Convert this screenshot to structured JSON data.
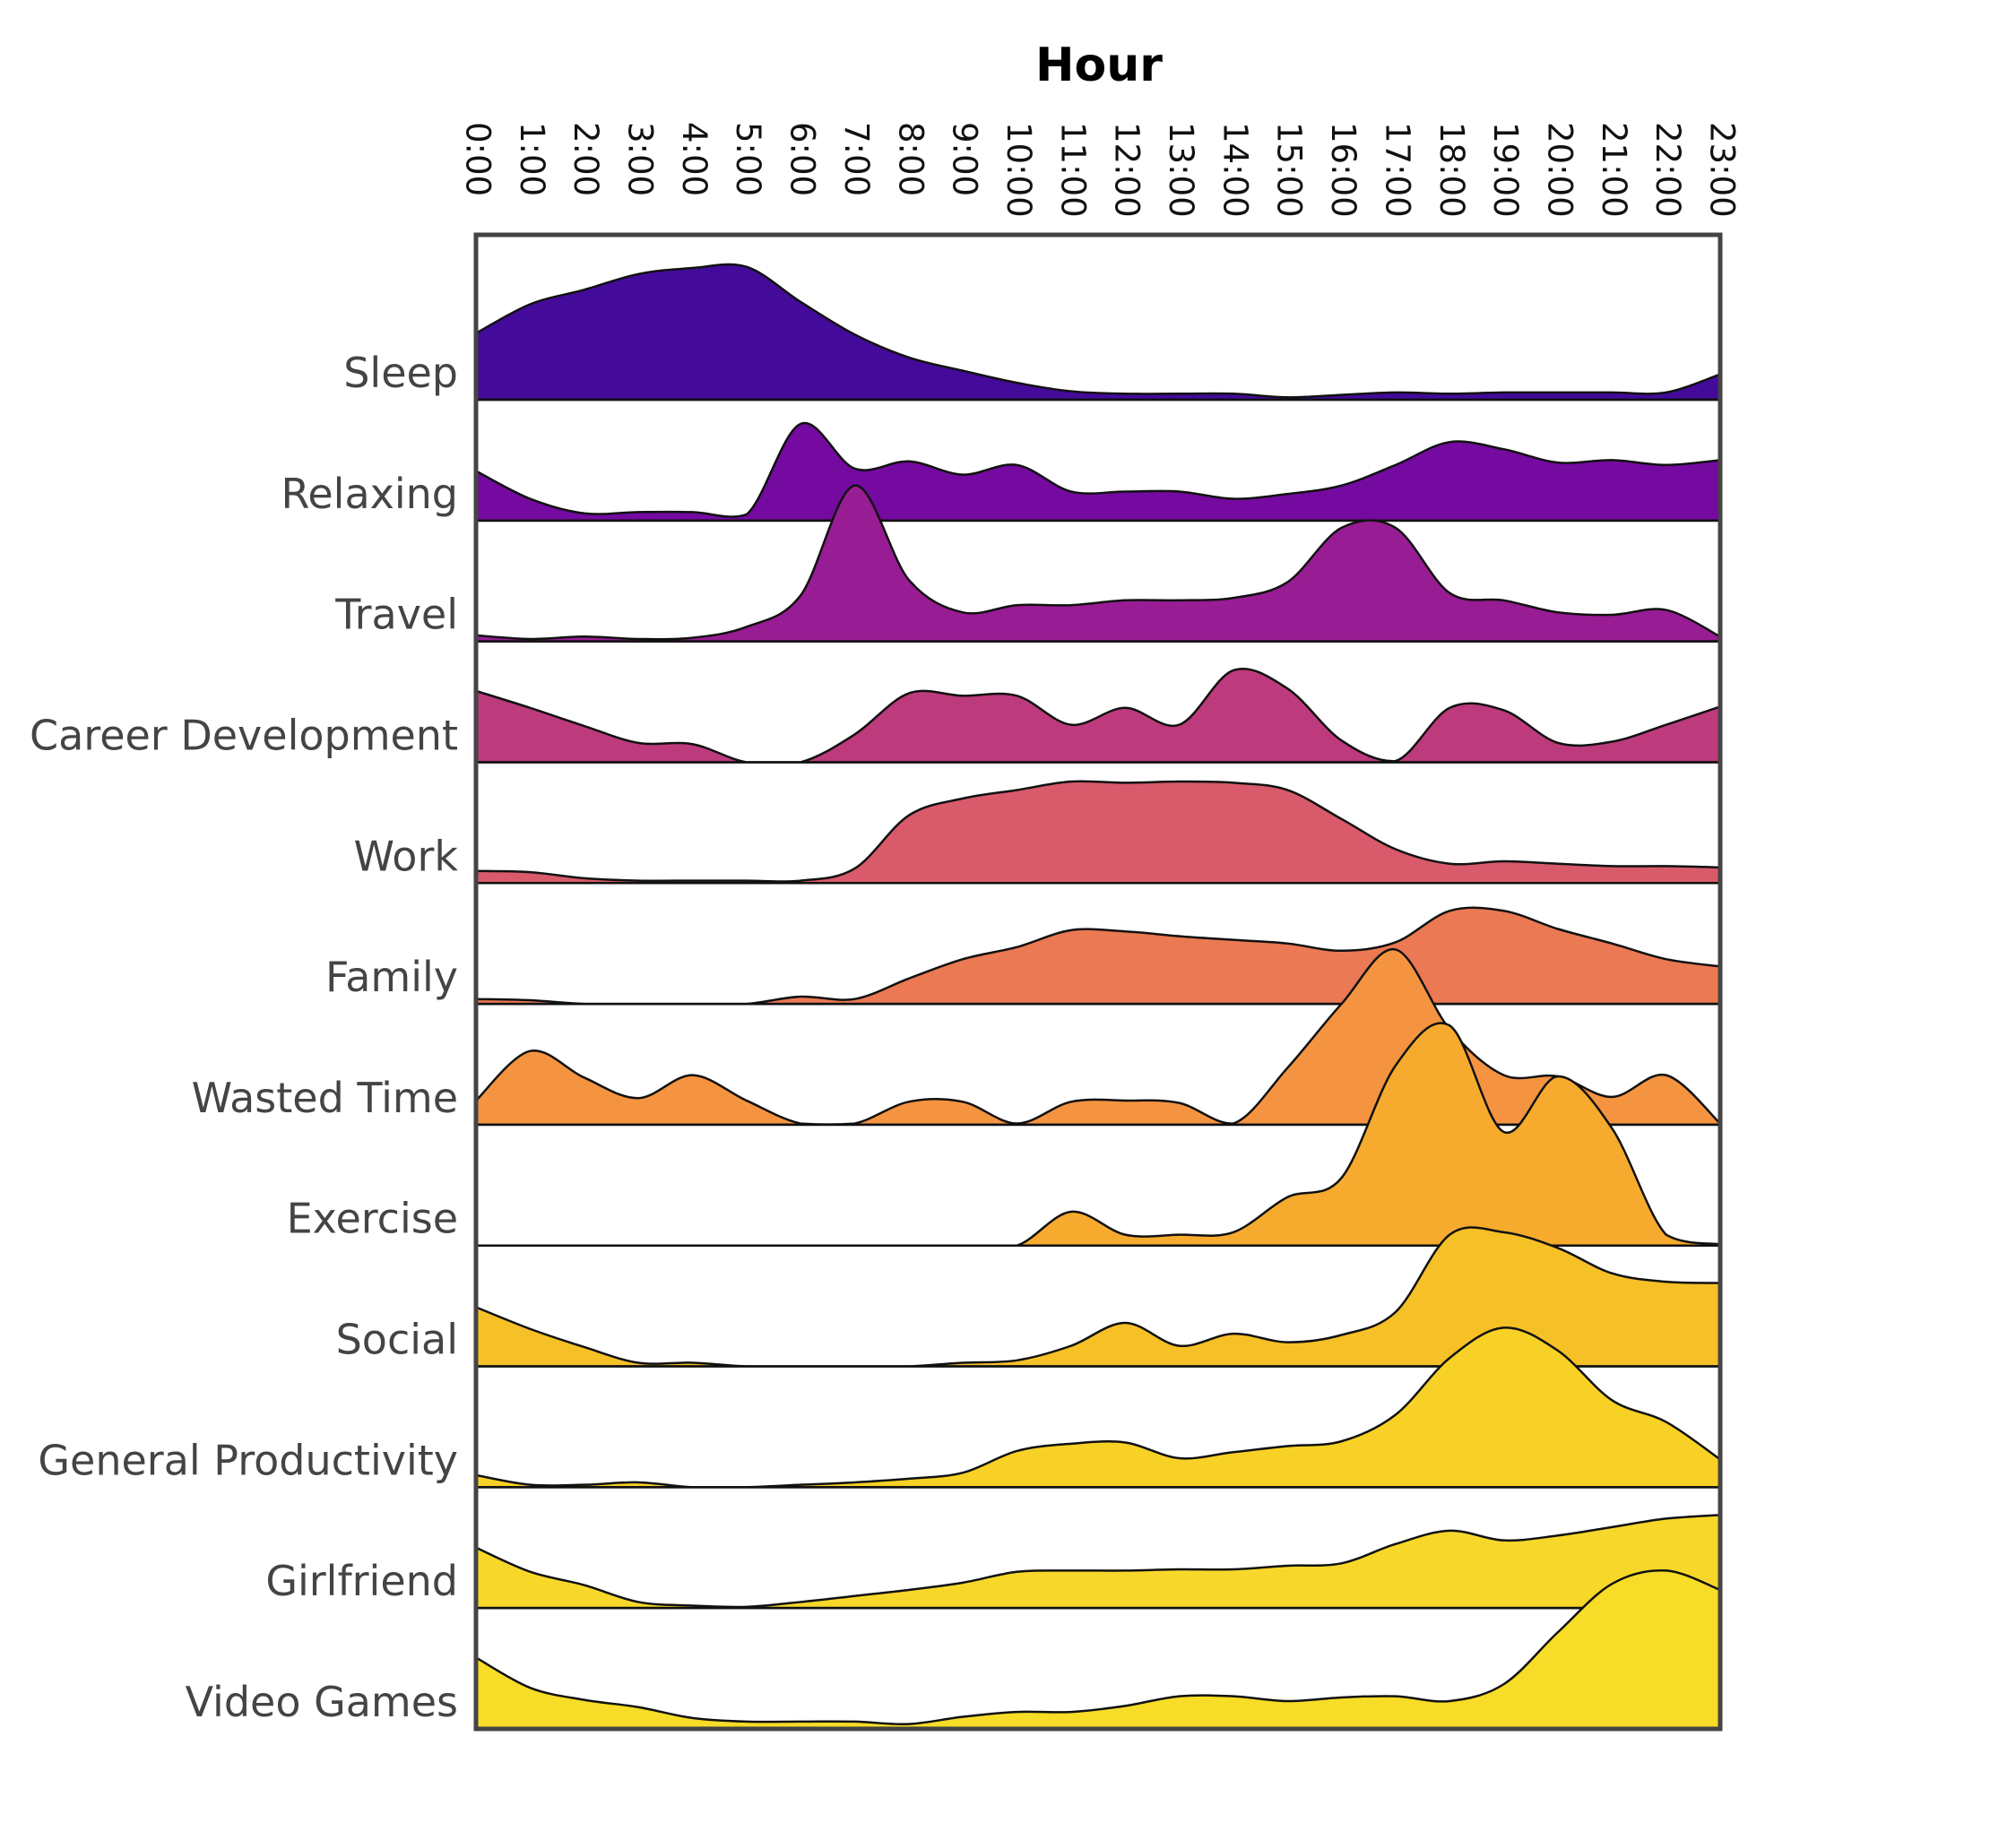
{
  "chart_data": {
    "type": "ridgeline",
    "title": "Hour",
    "categories": [
      "0:00",
      "1:00",
      "2:00",
      "3:00",
      "4:00",
      "5:00",
      "6:00",
      "7:00",
      "8:00",
      "9:00",
      "10:00",
      "11:00",
      "12:00",
      "13:00",
      "14:00",
      "15:00",
      "16:00",
      "17:00",
      "18:00",
      "19:00",
      "20:00",
      "21:00",
      "22:00",
      "23:00"
    ],
    "series": [
      {
        "name": "Sleep",
        "color": "#440a9a",
        "values": [
          0.55,
          0.79,
          0.91,
          1.04,
          1.09,
          1.1,
          0.81,
          0.54,
          0.35,
          0.24,
          0.14,
          0.07,
          0.05,
          0.05,
          0.05,
          0.02,
          0.04,
          0.06,
          0.05,
          0.06,
          0.06,
          0.06,
          0.06,
          0.21
        ]
      },
      {
        "name": "Relaxing",
        "color": "#740aa0",
        "values": [
          0.41,
          0.18,
          0.06,
          0.07,
          0.07,
          0.05,
          0.8,
          0.43,
          0.49,
          0.38,
          0.46,
          0.24,
          0.24,
          0.24,
          0.18,
          0.22,
          0.29,
          0.46,
          0.65,
          0.59,
          0.48,
          0.5,
          0.46,
          0.5
        ]
      },
      {
        "name": "Travel",
        "color": "#981c94",
        "values": [
          0.05,
          0.02,
          0.04,
          0.02,
          0.03,
          0.12,
          0.38,
          1.29,
          0.51,
          0.24,
          0.3,
          0.3,
          0.34,
          0.34,
          0.36,
          0.49,
          0.94,
          0.94,
          0.4,
          0.34,
          0.24,
          0.22,
          0.26,
          0.04
        ]
      },
      {
        "name": "Career Development",
        "color": "#bd3a7d",
        "values": [
          0.59,
          0.45,
          0.3,
          0.16,
          0.15,
          0,
          0,
          0.23,
          0.57,
          0.55,
          0.55,
          0.31,
          0.45,
          0.31,
          0.76,
          0.61,
          0.18,
          0.01,
          0.45,
          0.43,
          0.16,
          0.17,
          0.31,
          0.46
        ]
      },
      {
        "name": "Work",
        "color": "#d85a6b",
        "values": [
          0.1,
          0.09,
          0.04,
          0.02,
          0.02,
          0.02,
          0.02,
          0.12,
          0.56,
          0.7,
          0.77,
          0.84,
          0.83,
          0.84,
          0.83,
          0.77,
          0.53,
          0.28,
          0.16,
          0.18,
          0.16,
          0.14,
          0.14,
          0.13
        ]
      },
      {
        "name": "Family",
        "color": "#eb7954",
        "values": [
          0.04,
          0.03,
          0,
          0,
          0,
          0,
          0.06,
          0.04,
          0.21,
          0.37,
          0.47,
          0.61,
          0.6,
          0.56,
          0.53,
          0.5,
          0.44,
          0.51,
          0.77,
          0.77,
          0.62,
          0.5,
          0.37,
          0.31
        ]
      },
      {
        "name": "Wasted Time",
        "color": "#f59440",
        "values": [
          0.2,
          0.61,
          0.39,
          0.22,
          0.41,
          0.2,
          0.01,
          0.01,
          0.19,
          0.19,
          0.01,
          0.19,
          0.2,
          0.18,
          0.01,
          0.47,
          1.0,
          1.45,
          0.79,
          0.41,
          0.4,
          0.23,
          0.41,
          0.01
        ]
      },
      {
        "name": "Exercise",
        "color": "#f6ab2e",
        "values": [
          0,
          0,
          0,
          0,
          0,
          0,
          0,
          0,
          0,
          0,
          0,
          0.28,
          0.09,
          0.09,
          0.11,
          0.4,
          0.56,
          1.49,
          1.82,
          0.94,
          1.4,
          0.97,
          0.09,
          0.01
        ]
      },
      {
        "name": "Social",
        "color": "#f6c027",
        "values": [
          0.49,
          0.31,
          0.16,
          0.03,
          0.03,
          0,
          0,
          0,
          0,
          0.03,
          0.05,
          0.17,
          0.36,
          0.17,
          0.27,
          0.2,
          0.26,
          0.45,
          1.09,
          1.11,
          0.98,
          0.77,
          0.7,
          0.69
        ]
      },
      {
        "name": "General Productivity",
        "color": "#f7d126",
        "values": [
          0.1,
          0.02,
          0.02,
          0.04,
          0,
          0,
          0.02,
          0.04,
          0.07,
          0.12,
          0.3,
          0.36,
          0.37,
          0.24,
          0.29,
          0.34,
          0.38,
          0.6,
          1.07,
          1.32,
          1.13,
          0.72,
          0.54,
          0.23
        ]
      },
      {
        "name": "Girlfriend",
        "color": "#f7d82a",
        "values": [
          0.5,
          0.3,
          0.19,
          0.05,
          0.02,
          0.01,
          0.05,
          0.1,
          0.15,
          0.21,
          0.3,
          0.31,
          0.31,
          0.32,
          0.32,
          0.35,
          0.37,
          0.53,
          0.64,
          0.56,
          0.6,
          0.67,
          0.74,
          0.77
        ]
      },
      {
        "name": "Video Games",
        "color": "#f7dc28",
        "values": [
          0.59,
          0.34,
          0.24,
          0.18,
          0.09,
          0.06,
          0.06,
          0.06,
          0.04,
          0.1,
          0.14,
          0.14,
          0.19,
          0.27,
          0.27,
          0.23,
          0.26,
          0.27,
          0.23,
          0.37,
          0.8,
          1.2,
          1.31,
          1.15
        ]
      }
    ]
  }
}
